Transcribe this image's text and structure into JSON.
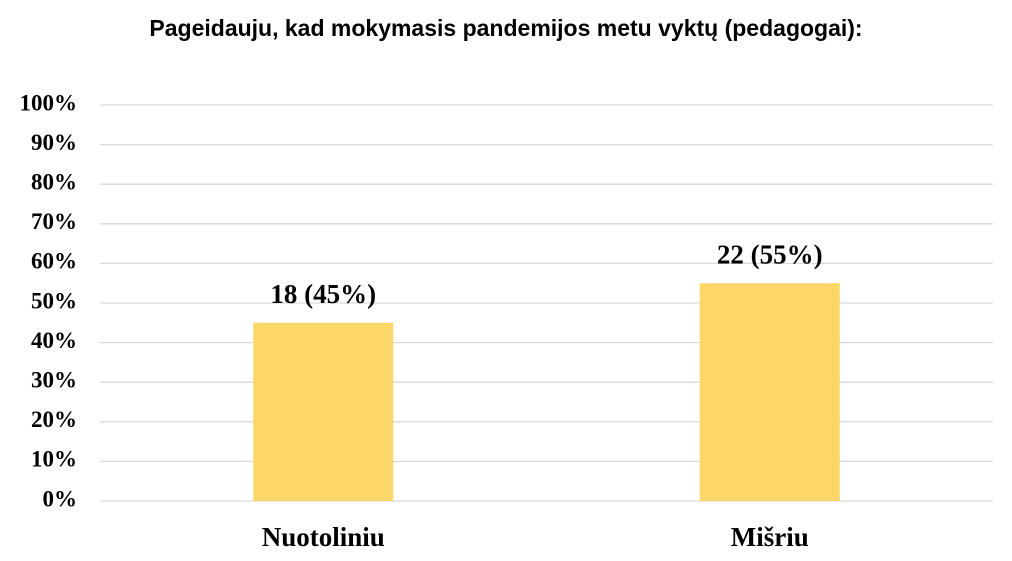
{
  "chart_data": {
    "type": "bar",
    "title": "Pageidauju, kad mokymasis pandemijos metu vyktų (pedagogai):",
    "categories": [
      "Nuotoliniu",
      "Mišriu"
    ],
    "values": [
      45,
      55
    ],
    "value_labels": [
      "18 (45%)",
      "22 (55%)"
    ],
    "color": "#fdd668",
    "ylim": [
      0,
      100
    ],
    "yticks": [
      {
        "value": 0,
        "label": "0%"
      },
      {
        "value": 10,
        "label": "10%"
      },
      {
        "value": 20,
        "label": "20%"
      },
      {
        "value": 30,
        "label": "30%"
      },
      {
        "value": 40,
        "label": "40%"
      },
      {
        "value": 50,
        "label": "50%"
      },
      {
        "value": 60,
        "label": "60%"
      },
      {
        "value": 70,
        "label": "70%"
      },
      {
        "value": 80,
        "label": "80%"
      },
      {
        "value": 90,
        "label": "90%"
      },
      {
        "value": 100,
        "label": "100%"
      }
    ],
    "grid": true
  }
}
